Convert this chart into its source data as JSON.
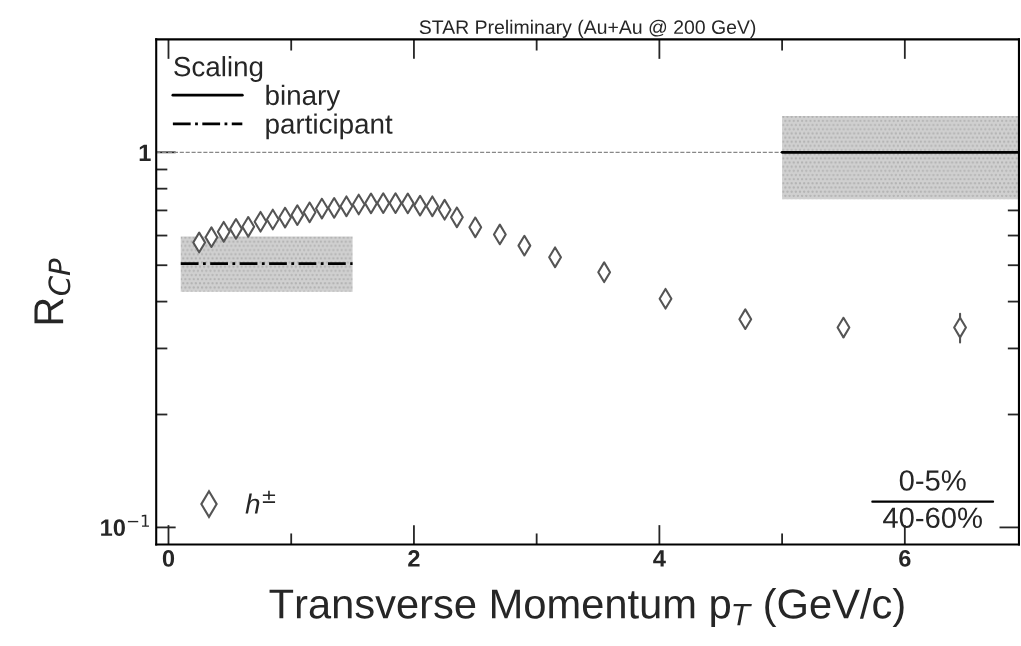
{
  "chart_data": {
    "type": "scatter",
    "title": "STAR Preliminary (Au+Au @ 200 GeV)",
    "xlabel": "Transverse Momentum p$_{T}$ (GeV/c)",
    "ylabel": "R$_{CP}$",
    "legend_title": "Scaling",
    "legend": "left",
    "log": "y",
    "xlim": [
      -0.1,
      6.93
    ],
    "ylim": [
      0.09,
      2.0
    ],
    "xticks": [
      0,
      {
        "value": 1,
        "label": null
      },
      2,
      {
        "value": 3,
        "label": null
      },
      4,
      {
        "value": 5,
        "label": null
      },
      6
    ],
    "yticks": [
      {
        "value": 0.1,
        "label": "10$^{−1}$"
      },
      {
        "value": 0.2,
        "label": null
      },
      {
        "value": 0.3,
        "label": null
      },
      {
        "value": 0.4,
        "label": null
      },
      {
        "value": 0.5,
        "label": null
      },
      {
        "value": 0.6,
        "label": null
      },
      {
        "value": 0.7,
        "label": null
      },
      {
        "value": 0.8,
        "label": null
      },
      {
        "value": 0.9,
        "label": null
      },
      1
    ],
    "ref_lines": [
      {
        "axis": "y",
        "value": 1,
        "color": "#888888",
        "line_style": "dashed"
      }
    ],
    "annotations": [
      "0-5%",
      "40-60%"
    ],
    "series": [
      {
        "name": "binary",
        "type": "line",
        "color": "#000000",
        "line_style": "solid",
        "x": [
          5.0,
          6.93
        ],
        "values": [
          1.0,
          1.0
        ],
        "lower": [
          0.75,
          0.75
        ],
        "upper": [
          1.25,
          1.25
        ]
      },
      {
        "name": "participant",
        "type": "line",
        "color": "#000000",
        "line_style": "dashdot",
        "x": [
          0.1,
          1.5
        ],
        "values": [
          0.505,
          0.505
        ],
        "lower": [
          0.425,
          0.425
        ],
        "upper": [
          0.596,
          0.596
        ]
      },
      {
        "name": "h$^{±}$",
        "marker": "diamond",
        "color": "#555555",
        "x": [
          0.25,
          0.35,
          0.45,
          0.55,
          0.65,
          0.75,
          0.85,
          0.95,
          1.05,
          1.15,
          1.25,
          1.35,
          1.45,
          1.55,
          1.65,
          1.75,
          1.85,
          1.95,
          2.05,
          2.15,
          2.25,
          2.35,
          2.5,
          2.7,
          2.9,
          3.15,
          3.55,
          4.05,
          4.7,
          5.5,
          6.45
        ],
        "values": [
          0.575,
          0.594,
          0.614,
          0.625,
          0.633,
          0.653,
          0.662,
          0.67,
          0.68,
          0.692,
          0.708,
          0.711,
          0.718,
          0.726,
          0.731,
          0.732,
          0.732,
          0.731,
          0.721,
          0.718,
          0.703,
          0.671,
          0.631,
          0.604,
          0.564,
          0.525,
          0.479,
          0.407,
          0.359,
          0.341,
          0.341
        ],
        "errors": [
          null,
          null,
          null,
          null,
          null,
          null,
          null,
          null,
          null,
          null,
          null,
          null,
          null,
          null,
          null,
          null,
          null,
          null,
          null,
          null,
          null,
          null,
          null,
          null,
          null,
          0.012,
          null,
          null,
          0.017,
          0.019,
          0.03
        ]
      }
    ]
  }
}
